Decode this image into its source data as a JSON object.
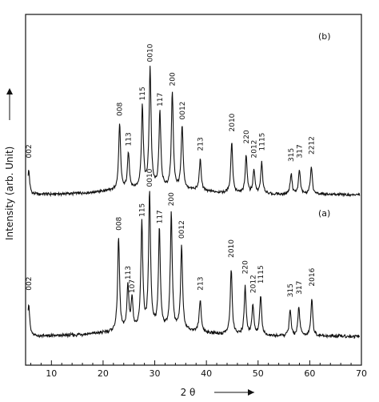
{
  "chart_data": {
    "type": "line",
    "title": "",
    "xlabel": "2 θ",
    "ylabel": "Intensity   (arb. Unit)",
    "xlim": [
      5,
      70
    ],
    "x_ticks": [
      10,
      20,
      30,
      40,
      50,
      60,
      70
    ],
    "grid": false,
    "series": [
      {
        "name": "(b)",
        "peaks": [
          {
            "x": 5.6,
            "h": 0.2,
            "label": "002"
          },
          {
            "x": 23.2,
            "h": 0.55,
            "label": "008"
          },
          {
            "x": 24.9,
            "h": 0.3,
            "label": "113"
          },
          {
            "x": 27.6,
            "h": 0.68,
            "label": "115"
          },
          {
            "x": 29.1,
            "h": 1.0,
            "label": "0010"
          },
          {
            "x": 31.0,
            "h": 0.63,
            "label": "117"
          },
          {
            "x": 33.4,
            "h": 0.8,
            "label": "200"
          },
          {
            "x": 35.3,
            "h": 0.52,
            "label": "0012"
          },
          {
            "x": 38.8,
            "h": 0.26,
            "label": "213"
          },
          {
            "x": 44.9,
            "h": 0.42,
            "label": "2010"
          },
          {
            "x": 47.7,
            "h": 0.32,
            "label": "220"
          },
          {
            "x": 49.2,
            "h": 0.2,
            "label": "2012"
          },
          {
            "x": 50.7,
            "h": 0.26,
            "label": "1115"
          },
          {
            "x": 56.4,
            "h": 0.17,
            "label": "315"
          },
          {
            "x": 58.0,
            "h": 0.2,
            "label": "317"
          },
          {
            "x": 60.3,
            "h": 0.23,
            "label": "2212"
          }
        ]
      },
      {
        "name": "(a)",
        "peaks": [
          {
            "x": 5.6,
            "h": 0.24,
            "label": "002"
          },
          {
            "x": 23.0,
            "h": 0.68,
            "label": "008"
          },
          {
            "x": 24.8,
            "h": 0.32,
            "label": "113"
          },
          {
            "x": 25.6,
            "h": 0.22,
            "label": "107"
          },
          {
            "x": 27.5,
            "h": 0.78,
            "label": "115"
          },
          {
            "x": 29.0,
            "h": 1.0,
            "label": "0010"
          },
          {
            "x": 30.9,
            "h": 0.73,
            "label": "117"
          },
          {
            "x": 33.2,
            "h": 0.86,
            "label": "200"
          },
          {
            "x": 35.2,
            "h": 0.62,
            "label": "0012"
          },
          {
            "x": 38.8,
            "h": 0.24,
            "label": "213"
          },
          {
            "x": 44.8,
            "h": 0.48,
            "label": "2010"
          },
          {
            "x": 47.5,
            "h": 0.36,
            "label": "220"
          },
          {
            "x": 49.0,
            "h": 0.22,
            "label": "2012"
          },
          {
            "x": 50.5,
            "h": 0.29,
            "label": "1115"
          },
          {
            "x": 56.2,
            "h": 0.19,
            "label": "315"
          },
          {
            "x": 57.9,
            "h": 0.21,
            "label": "317"
          },
          {
            "x": 60.4,
            "h": 0.27,
            "label": "2016"
          }
        ]
      }
    ]
  }
}
